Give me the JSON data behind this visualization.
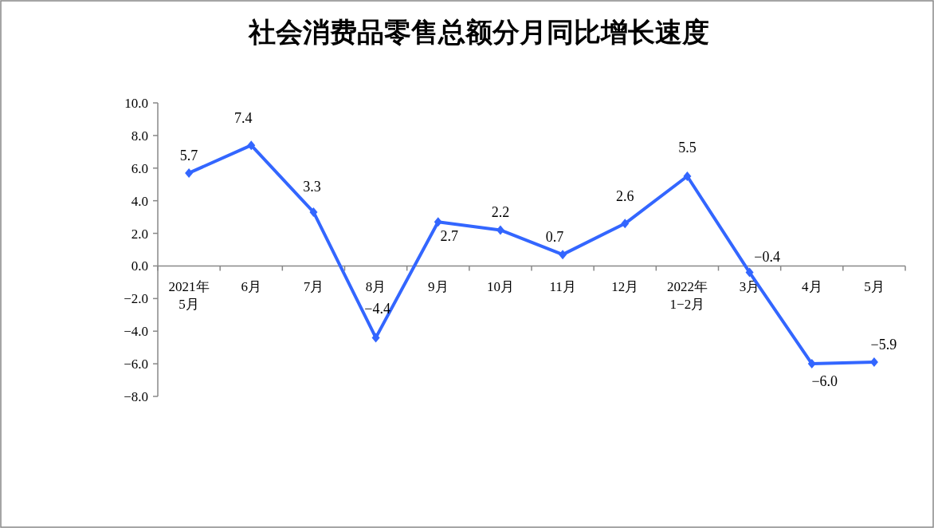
{
  "chart_data": {
    "type": "line",
    "title": "社会消费品零售总额分月同比增长速度",
    "categories": [
      "2021年\n5月",
      "6月",
      "7月",
      "8月",
      "9月",
      "10月",
      "11月",
      "12月",
      "2022年\n1−2月",
      "3月",
      "4月",
      "5月"
    ],
    "series": [
      {
        "color": "#3366ff",
        "values": [
          5.7,
          7.4,
          3.3,
          -4.4,
          2.7,
          2.2,
          0.7,
          2.6,
          5.5,
          -0.4,
          -6.0,
          -5.9
        ],
        "value_labels": [
          "5.7",
          "7.4",
          "3.3",
          "−4.4",
          "2.7",
          "2.2",
          "0.7",
          "2.6",
          "5.5",
          "−0.4",
          "−6.0",
          "−5.9"
        ]
      }
    ],
    "ylim": [
      -8,
      10
    ],
    "yticks": [
      {
        "value": -8,
        "label": "−8.0"
      },
      {
        "value": -6,
        "label": "−6.0"
      },
      {
        "value": -4,
        "label": "−4.0"
      },
      {
        "value": -2,
        "label": "−2.0"
      },
      {
        "value": 0,
        "label": "0.0"
      },
      {
        "value": 2,
        "label": "2.0"
      },
      {
        "value": 4,
        "label": "4.0"
      },
      {
        "value": 6,
        "label": "6.0"
      },
      {
        "value": 8,
        "label": "8.0"
      },
      {
        "value": 10,
        "label": "10.0"
      }
    ],
    "marker": "diamond",
    "line_style": "solid"
  }
}
